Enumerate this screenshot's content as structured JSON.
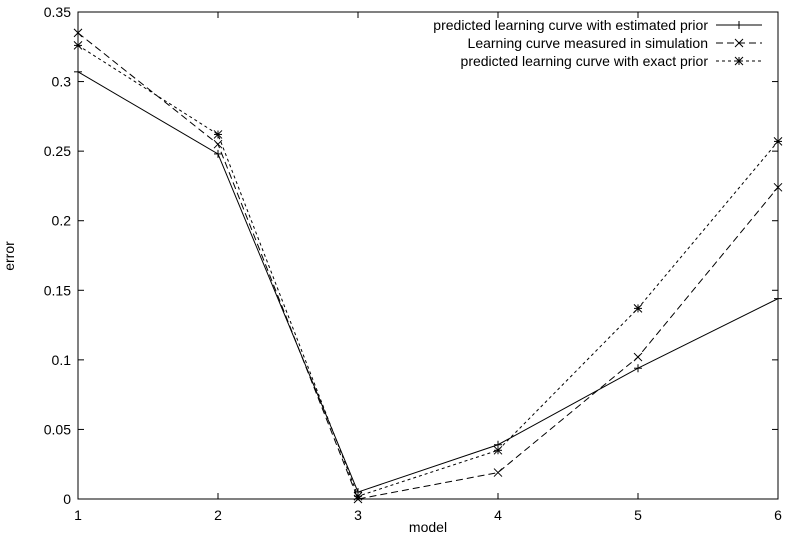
{
  "chart_data": {
    "type": "line",
    "title": "",
    "xlabel": "model",
    "ylabel": "error",
    "x": [
      1,
      2,
      3,
      4,
      5,
      6
    ],
    "xlim": [
      1,
      6
    ],
    "ylim": [
      0,
      0.35
    ],
    "xticks": [
      "1",
      "2",
      "3",
      "4",
      "5",
      "6"
    ],
    "yticks": [
      "0",
      "0.05",
      "0.1",
      "0.15",
      "0.2",
      "0.25",
      "0.3",
      "0.35"
    ],
    "grid": false,
    "legend_position": "top-right",
    "series": [
      {
        "name": "predicted learning curve with estimated prior",
        "values": [
          0.307,
          0.248,
          0.005,
          0.039,
          0.094,
          0.144
        ],
        "marker": "plus",
        "dash": "solid"
      },
      {
        "name": "Learning curve measured in simulation",
        "values": [
          0.335,
          0.255,
          0.0,
          0.019,
          0.102,
          0.224
        ],
        "marker": "cross",
        "dash": "long-dash"
      },
      {
        "name": "predicted learning curve with exact prior",
        "values": [
          0.326,
          0.262,
          0.002,
          0.035,
          0.137,
          0.257
        ],
        "marker": "star",
        "dash": "short-dash"
      }
    ]
  }
}
